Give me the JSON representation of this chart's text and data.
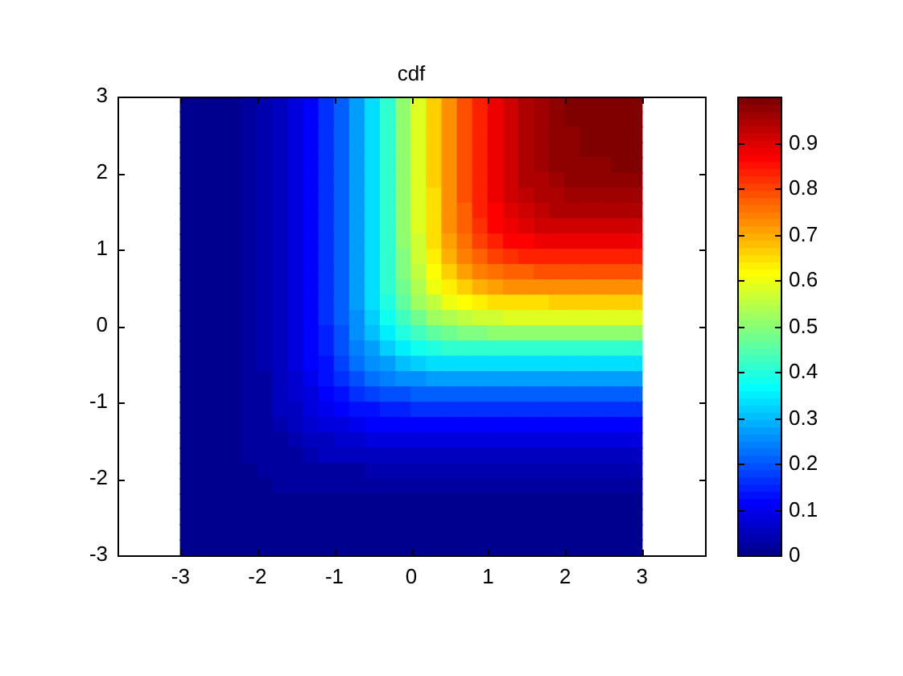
{
  "chart_data": {
    "type": "scatter",
    "title": "cdf",
    "marker": "square",
    "xlim": [
      -3.82,
      3.82
    ],
    "xticks": [
      -3,
      -2,
      -1,
      0,
      1,
      2,
      3
    ],
    "ylim": [
      -3,
      3
    ],
    "yticks": [
      -3,
      -2,
      -1,
      0,
      1,
      2,
      3
    ],
    "clim": [
      0,
      1
    ],
    "cticks": [
      0,
      0.1,
      0.2,
      0.3,
      0.4,
      0.5,
      0.6,
      0.7,
      0.8,
      0.9
    ],
    "x": [
      -2.9,
      -2.7,
      -2.5,
      -2.3,
      -2.1,
      -1.9,
      -1.7,
      -1.5,
      -1.3,
      -1.1,
      -0.9,
      -0.7,
      -0.5,
      -0.3,
      -0.1,
      0.1,
      0.3,
      0.5,
      0.7,
      0.9,
      1.1,
      1.3,
      1.5,
      1.7,
      1.9,
      2.1,
      2.3,
      2.5,
      2.7,
      2.9,
      -2.9,
      -2.7,
      -2.5,
      -2.3,
      -2.1,
      -1.9,
      -1.7,
      -1.5,
      -1.3,
      -1.1,
      -0.9,
      -0.7,
      -0.5,
      -0.3,
      -0.1,
      0.1,
      0.3,
      0.5,
      0.7,
      0.9,
      1.1,
      1.3,
      1.5,
      1.7,
      1.9,
      2.1,
      2.3,
      2.5,
      2.7,
      2.9,
      -2.9,
      -2.7,
      -2.5,
      -2.3,
      -2.1,
      -1.9,
      -1.7,
      -1.5,
      -1.3,
      -1.1,
      -0.9,
      -0.7,
      -0.5,
      -0.3,
      -0.1,
      0.1,
      0.3,
      0.5,
      0.7,
      0.9,
      1.1,
      1.3,
      1.5,
      1.7,
      1.9,
      2.1,
      2.3,
      2.5,
      2.7,
      2.9,
      -2.9,
      -2.7,
      -2.5,
      -2.3,
      -2.1,
      -1.9,
      -1.7,
      -1.5,
      -1.3,
      -1.1,
      -0.9,
      -0.7,
      -0.5,
      -0.3,
      -0.1,
      0.1,
      0.3,
      0.5,
      0.7,
      0.9,
      1.1,
      1.3,
      1.5,
      1.7,
      1.9,
      2.1,
      2.3,
      2.5,
      2.7,
      2.9,
      -2.9,
      -2.7,
      -2.5,
      -2.3,
      -2.1,
      -1.9,
      -1.7,
      -1.5,
      -1.3,
      -1.1,
      -0.9,
      -0.7,
      -0.5,
      -0.3,
      -0.1,
      0.1,
      0.3,
      0.5,
      0.7,
      0.9,
      1.1,
      1.3,
      1.5,
      1.7,
      1.9,
      2.1,
      2.3,
      2.5,
      2.7,
      2.9,
      -2.9,
      -2.7,
      -2.5,
      -2.3,
      -2.1,
      -1.9,
      -1.7,
      -1.5,
      -1.3,
      -1.1,
      -0.9,
      -0.7,
      -0.5,
      -0.3,
      -0.1,
      0.1,
      0.3,
      0.5,
      0.7,
      0.9,
      1.1,
      1.3,
      1.5,
      1.7,
      1.9,
      2.1,
      2.3,
      2.5,
      2.7,
      2.9,
      -2.9,
      -2.7,
      -2.5,
      -2.3,
      -2.1,
      -1.9,
      -1.7,
      -1.5,
      -1.3,
      -1.1,
      -0.9,
      -0.7,
      -0.5,
      -0.3,
      -0.1,
      0.1,
      0.3,
      0.5,
      0.7,
      0.9,
      1.1,
      1.3,
      1.5,
      1.7,
      1.9,
      2.1,
      2.3,
      2.5,
      2.7,
      2.9,
      -2.9,
      -2.7,
      -2.5,
      -2.3,
      -2.1,
      -1.9,
      -1.7,
      -1.5,
      -1.3,
      -1.1,
      -0.9,
      -0.7,
      -0.5,
      -0.3,
      -0.1,
      0.1,
      0.3,
      0.5,
      0.7,
      0.9,
      1.1,
      1.3,
      1.5,
      1.7,
      1.9,
      2.1,
      2.3,
      2.5,
      2.7,
      2.9,
      -2.9,
      -2.7,
      -2.5,
      -2.3,
      -2.1,
      -1.9,
      -1.7,
      -1.5,
      -1.3,
      -1.1,
      -0.9,
      -0.7,
      -0.5,
      -0.3,
      -0.1,
      0.1,
      0.3,
      0.5,
      0.7,
      0.9,
      1.1,
      1.3,
      1.5,
      1.7,
      1.9,
      2.1,
      2.3,
      2.5,
      2.7,
      2.9,
      -2.9,
      -2.7,
      -2.5,
      -2.3,
      -2.1,
      -1.9,
      -1.7,
      -1.5,
      -1.3,
      -1.1,
      -0.9,
      -0.7,
      -0.5,
      -0.3,
      -0.1,
      0.1,
      0.3,
      0.5,
      0.7,
      0.9,
      1.1,
      1.3,
      1.5,
      1.7,
      1.9,
      2.1,
      2.3,
      2.5,
      2.7,
      2.9,
      -2.9,
      -2.7,
      -2.5,
      -2.3,
      -2.1,
      -1.9,
      -1.7,
      -1.5,
      -1.3,
      -1.1,
      -0.9,
      -0.7,
      -0.5,
      -0.3,
      -0.1,
      0.1,
      0.3,
      0.5,
      0.7,
      0.9,
      1.1,
      1.3,
      1.5,
      1.7,
      1.9,
      2.1,
      2.3,
      2.5,
      2.7,
      2.9,
      -2.9,
      -2.7,
      -2.5,
      -2.3,
      -2.1,
      -1.9,
      -1.7,
      -1.5,
      -1.3,
      -1.1,
      -0.9,
      -0.7,
      -0.5,
      -0.3,
      -0.1,
      0.1,
      0.3,
      0.5,
      0.7,
      0.9,
      1.1,
      1.3,
      1.5,
      1.7,
      1.9,
      2.1,
      2.3,
      2.5,
      2.7,
      2.9,
      -2.9,
      -2.7,
      -2.5,
      -2.3,
      -2.1,
      -1.9,
      -1.7,
      -1.5,
      -1.3,
      -1.1,
      -0.9,
      -0.7,
      -0.5,
      -0.3,
      -0.1,
      0.1,
      0.3,
      0.5,
      0.7,
      0.9,
      1.1,
      1.3,
      1.5,
      1.7,
      1.9,
      2.1,
      2.3,
      2.5,
      2.7,
      2.9,
      -2.9,
      -2.7,
      -2.5,
      -2.3,
      -2.1,
      -1.9,
      -1.7,
      -1.5,
      -1.3,
      -1.1,
      -0.9,
      -0.7,
      -0.5,
      -0.3,
      -0.1,
      0.1,
      0.3,
      0.5,
      0.7,
      0.9,
      1.1,
      1.3,
      1.5,
      1.7,
      1.9,
      2.1,
      2.3,
      2.5,
      2.7,
      2.9,
      -2.9,
      -2.7,
      -2.5,
      -2.3,
      -2.1,
      -1.9,
      -1.7,
      -1.5,
      -1.3,
      -1.1,
      -0.9,
      -0.7,
      -0.5,
      -0.3,
      -0.1,
      0.1,
      0.3,
      0.5,
      0.7,
      0.9,
      1.1,
      1.3,
      1.5,
      1.7,
      1.9,
      2.1,
      2.3,
      2.5,
      2.7,
      2.9,
      -2.9,
      -2.7,
      -2.5,
      -2.3,
      -2.1,
      -1.9,
      -1.7,
      -1.5,
      -1.3,
      -1.1,
      -0.9,
      -0.7,
      -0.5,
      -0.3,
      -0.1,
      0.1,
      0.3,
      0.5,
      0.7,
      0.9,
      1.1,
      1.3,
      1.5,
      1.7,
      1.9,
      2.1,
      2.3,
      2.5,
      2.7,
      2.9,
      -2.9,
      -2.7,
      -2.5,
      -2.3,
      -2.1,
      -1.9,
      -1.7,
      -1.5,
      -1.3,
      -1.1,
      -0.9,
      -0.7,
      -0.5,
      -0.3,
      -0.1,
      0.1,
      0.3,
      0.5,
      0.7,
      0.9,
      1.1,
      1.3,
      1.5,
      1.7,
      1.9,
      2.1,
      2.3,
      2.5,
      2.7,
      2.9,
      -2.9,
      -2.7,
      -2.5,
      -2.3,
      -2.1,
      -1.9,
      -1.7,
      -1.5,
      -1.3,
      -1.1,
      -0.9,
      -0.7,
      -0.5,
      -0.3,
      -0.1,
      0.1,
      0.3,
      0.5,
      0.7,
      0.9,
      1.1,
      1.3,
      1.5,
      1.7,
      1.9,
      2.1,
      2.3,
      2.5,
      2.7,
      2.9,
      -2.9,
      -2.7,
      -2.5,
      -2.3,
      -2.1,
      -1.9,
      -1.7,
      -1.5,
      -1.3,
      -1.1,
      -0.9,
      -0.7,
      -0.5,
      -0.3,
      -0.1,
      0.1,
      0.3,
      0.5,
      0.7,
      0.9,
      1.1,
      1.3,
      1.5,
      1.7,
      1.9,
      2.1,
      2.3,
      2.5,
      2.7,
      2.9,
      -2.9,
      -2.7,
      -2.5,
      -2.3,
      -2.1,
      -1.9,
      -1.7,
      -1.5,
      -1.3,
      -1.1,
      -0.9,
      -0.7,
      -0.5,
      -0.3,
      -0.1,
      0.1,
      0.3,
      0.5,
      0.7,
      0.9,
      1.1,
      1.3,
      1.5,
      1.7,
      1.9,
      2.1,
      2.3,
      2.5,
      2.7,
      2.9,
      -2.9,
      -2.7,
      -2.5,
      -2.3,
      -2.1,
      -1.9,
      -1.7,
      -1.5,
      -1.3,
      -1.1,
      -0.9,
      -0.7,
      -0.5,
      -0.3,
      -0.1,
      0.1,
      0.3,
      0.5,
      0.7,
      0.9,
      1.1,
      1.3,
      1.5,
      1.7,
      1.9,
      2.1,
      2.3,
      2.5,
      2.7,
      2.9,
      -2.9,
      -2.7,
      -2.5,
      -2.3,
      -2.1,
      -1.9,
      -1.7,
      -1.5,
      -1.3,
      -1.1,
      -0.9,
      -0.7,
      -0.5,
      -0.3,
      -0.1,
      0.1,
      0.3,
      0.5,
      0.7,
      0.9,
      1.1,
      1.3,
      1.5,
      1.7,
      1.9,
      2.1,
      2.3,
      2.5,
      2.7,
      2.9,
      -2.9,
      -2.7,
      -2.5,
      -2.3,
      -2.1,
      -1.9,
      -1.7,
      -1.5,
      -1.3,
      -1.1,
      -0.9,
      -0.7,
      -0.5,
      -0.3,
      -0.1,
      0.1,
      0.3,
      0.5,
      0.7,
      0.9,
      1.1,
      1.3,
      1.5,
      1.7,
      1.9,
      2.1,
      2.3,
      2.5,
      2.7,
      2.9,
      -2.9,
      -2.7,
      -2.5,
      -2.3,
      -2.1,
      -1.9,
      -1.7,
      -1.5,
      -1.3,
      -1.1,
      -0.9,
      -0.7,
      -0.5,
      -0.3,
      -0.1,
      0.1,
      0.3,
      0.5,
      0.7,
      0.9,
      1.1,
      1.3,
      1.5,
      1.7,
      1.9,
      2.1,
      2.3,
      2.5,
      2.7,
      2.9,
      -2.9,
      -2.7,
      -2.5,
      -2.3,
      -2.1,
      -1.9,
      -1.7,
      -1.5,
      -1.3,
      -1.1,
      -0.9,
      -0.7,
      -0.5,
      -0.3,
      -0.1,
      0.1,
      0.3,
      0.5,
      0.7,
      0.9,
      1.1,
      1.3,
      1.5,
      1.7,
      1.9,
      2.1,
      2.3,
      2.5,
      2.7,
      2.9,
      -2.9,
      -2.7,
      -2.5,
      -2.3,
      -2.1,
      -1.9,
      -1.7,
      -1.5,
      -1.3,
      -1.1,
      -0.9,
      -0.7,
      -0.5,
      -0.3,
      -0.1,
      0.1,
      0.3,
      0.5,
      0.7,
      0.9,
      1.1,
      1.3,
      1.5,
      1.7,
      1.9,
      2.1,
      2.3,
      2.5,
      2.7,
      2.9,
      -2.9,
      -2.7,
      -2.5,
      -2.3,
      -2.1,
      -1.9,
      -1.7,
      -1.5,
      -1.3,
      -1.1,
      -0.9,
      -0.7,
      -0.5,
      -0.3,
      -0.1,
      0.1,
      0.3,
      0.5,
      0.7,
      0.9,
      1.1,
      1.3,
      1.5,
      1.7,
      1.9,
      2.1,
      2.3,
      2.5,
      2.7,
      2.9,
      -2.9,
      -2.7,
      -2.5,
      -2.3,
      -2.1,
      -1.9,
      -1.7,
      -1.5,
      -1.3,
      -1.1,
      -0.9,
      -0.7,
      -0.5,
      -0.3,
      -0.1,
      0.1,
      0.3,
      0.5,
      0.7,
      0.9,
      1.1,
      1.3,
      1.5,
      1.7,
      1.9,
      2.1,
      2.3,
      2.5,
      2.7,
      2.9,
      -2.9,
      -2.7,
      -2.5,
      -2.3,
      -2.1,
      -1.9,
      -1.7,
      -1.5,
      -1.3,
      -1.1,
      -0.9,
      -0.7,
      -0.5,
      -0.3,
      -0.1,
      0.1,
      0.3,
      0.5,
      0.7,
      0.9,
      1.1,
      1.3,
      1.5,
      1.7,
      1.9,
      2.1,
      2.3,
      2.5,
      2.7,
      2.9,
      -2.9,
      -2.7,
      -2.5,
      -2.3,
      -2.1,
      -1.9,
      -1.7,
      -1.5,
      -1.3,
      -1.1,
      -0.9,
      -0.7,
      -0.5,
      -0.3,
      -0.1,
      0.1,
      0.3,
      0.5,
      0.7,
      0.9,
      1.1,
      1.3,
      1.5,
      1.7,
      1.9,
      2.1,
      2.3,
      2.5,
      2.7,
      2.9
    ],
    "values": [
      2.9,
      2.9,
      2.9,
      2.9,
      2.9,
      2.9,
      2.9,
      2.9,
      2.9,
      2.9,
      2.9,
      2.9,
      2.9,
      2.9,
      2.9,
      2.9,
      2.9,
      2.9,
      2.9,
      2.9,
      2.9,
      2.9,
      2.9,
      2.9,
      2.9,
      2.9,
      2.9,
      2.9,
      2.9,
      2.9,
      2.7,
      2.7,
      2.7,
      2.7,
      2.7,
      2.7,
      2.7,
      2.7,
      2.7,
      2.7,
      2.7,
      2.7,
      2.7,
      2.7,
      2.7,
      2.7,
      2.7,
      2.7,
      2.7,
      2.7,
      2.7,
      2.7,
      2.7,
      2.7,
      2.7,
      2.7,
      2.7,
      2.7,
      2.7,
      2.7,
      2.5,
      2.5,
      2.5,
      2.5,
      2.5,
      2.5,
      2.5,
      2.5,
      2.5,
      2.5,
      2.5,
      2.5,
      2.5,
      2.5,
      2.5,
      2.5,
      2.5,
      2.5,
      2.5,
      2.5,
      2.5,
      2.5,
      2.5,
      2.5,
      2.5,
      2.5,
      2.5,
      2.5,
      2.5,
      2.5,
      2.3,
      2.3,
      2.3,
      2.3,
      2.3,
      2.3,
      2.3,
      2.3,
      2.3,
      2.3,
      2.3,
      2.3,
      2.3,
      2.3,
      2.3,
      2.3,
      2.3,
      2.3,
      2.3,
      2.3,
      2.3,
      2.3,
      2.3,
      2.3,
      2.3,
      2.3,
      2.3,
      2.3,
      2.3,
      2.3,
      2.1,
      2.1,
      2.1,
      2.1,
      2.1,
      2.1,
      2.1,
      2.1,
      2.1,
      2.1,
      2.1,
      2.1,
      2.1,
      2.1,
      2.1,
      2.1,
      2.1,
      2.1,
      2.1,
      2.1,
      2.1,
      2.1,
      2.1,
      2.1,
      2.1,
      2.1,
      2.1,
      2.1,
      2.1,
      2.1,
      1.9,
      1.9,
      1.9,
      1.9,
      1.9,
      1.9,
      1.9,
      1.9,
      1.9,
      1.9,
      1.9,
      1.9,
      1.9,
      1.9,
      1.9,
      1.9,
      1.9,
      1.9,
      1.9,
      1.9,
      1.9,
      1.9,
      1.9,
      1.9,
      1.9,
      1.9,
      1.9,
      1.9,
      1.9,
      1.9,
      1.7,
      1.7,
      1.7,
      1.7,
      1.7,
      1.7,
      1.7,
      1.7,
      1.7,
      1.7,
      1.7,
      1.7,
      1.7,
      1.7,
      1.7,
      1.7,
      1.7,
      1.7,
      1.7,
      1.7,
      1.7,
      1.7,
      1.7,
      1.7,
      1.7,
      1.7,
      1.7,
      1.7,
      1.7,
      1.7,
      1.5,
      1.5,
      1.5,
      1.5,
      1.5,
      1.5,
      1.5,
      1.5,
      1.5,
      1.5,
      1.5,
      1.5,
      1.5,
      1.5,
      1.5,
      1.5,
      1.5,
      1.5,
      1.5,
      1.5,
      1.5,
      1.5,
      1.5,
      1.5,
      1.5,
      1.5,
      1.5,
      1.5,
      1.5,
      1.5,
      1.3,
      1.3,
      1.3,
      1.3,
      1.3,
      1.3,
      1.3,
      1.3,
      1.3,
      1.3,
      1.3,
      1.3,
      1.3,
      1.3,
      1.3,
      1.3,
      1.3,
      1.3,
      1.3,
      1.3,
      1.3,
      1.3,
      1.3,
      1.3,
      1.3,
      1.3,
      1.3,
      1.3,
      1.3,
      1.3,
      1.1,
      1.1,
      1.1,
      1.1,
      1.1,
      1.1,
      1.1,
      1.1,
      1.1,
      1.1,
      1.1,
      1.1,
      1.1,
      1.1,
      1.1,
      1.1,
      1.1,
      1.1,
      1.1,
      1.1,
      1.1,
      1.1,
      1.1,
      1.1,
      1.1,
      1.1,
      1.1,
      1.1,
      1.1,
      1.1,
      0.9,
      0.9,
      0.9,
      0.9,
      0.9,
      0.9,
      0.9,
      0.9,
      0.9,
      0.9,
      0.9,
      0.9,
      0.9,
      0.9,
      0.9,
      0.9,
      0.9,
      0.9,
      0.9,
      0.9,
      0.9,
      0.9,
      0.9,
      0.9,
      0.9,
      0.9,
      0.9,
      0.9,
      0.9,
      0.9,
      0.7,
      0.7,
      0.7,
      0.7,
      0.7,
      0.7,
      0.7,
      0.7,
      0.7,
      0.7,
      0.7,
      0.7,
      0.7,
      0.7,
      0.7,
      0.7,
      0.7,
      0.7,
      0.7,
      0.7,
      0.7,
      0.7,
      0.7,
      0.7,
      0.7,
      0.7,
      0.7,
      0.7,
      0.7,
      0.7,
      0.5,
      0.5,
      0.5,
      0.5,
      0.5,
      0.5,
      0.5,
      0.5,
      0.5,
      0.5,
      0.5,
      0.5,
      0.5,
      0.5,
      0.5,
      0.5,
      0.5,
      0.5,
      0.5,
      0.5,
      0.5,
      0.5,
      0.5,
      0.5,
      0.5,
      0.5,
      0.5,
      0.5,
      0.5,
      0.5,
      0.3,
      0.3,
      0.3,
      0.3,
      0.3,
      0.3,
      0.3,
      0.3,
      0.3,
      0.3,
      0.3,
      0.3,
      0.3,
      0.3,
      0.3,
      0.3,
      0.3,
      0.3,
      0.3,
      0.3,
      0.3,
      0.3,
      0.3,
      0.3,
      0.3,
      0.3,
      0.3,
      0.3,
      0.3,
      0.3,
      0.1,
      0.1,
      0.1,
      0.1,
      0.1,
      0.1,
      0.1,
      0.1,
      0.1,
      0.1,
      0.1,
      0.1,
      0.1,
      0.1,
      0.1,
      0.1,
      0.1,
      0.1,
      0.1,
      0.1,
      0.1,
      0.1,
      0.1,
      0.1,
      0.1,
      0.1,
      0.1,
      0.1,
      0.1,
      0.1,
      -0.1,
      -0.1,
      -0.1,
      -0.1,
      -0.1,
      -0.1,
      -0.1,
      -0.1,
      -0.1,
      -0.1,
      -0.1,
      -0.1,
      -0.1,
      -0.1,
      -0.1,
      -0.1,
      -0.1,
      -0.1,
      -0.1,
      -0.1,
      -0.1,
      -0.1,
      -0.1,
      -0.1,
      -0.1,
      -0.1,
      -0.1,
      -0.1,
      -0.1,
      -0.1,
      -0.3,
      -0.3,
      -0.3,
      -0.3,
      -0.3,
      -0.3,
      -0.3,
      -0.3,
      -0.3,
      -0.3,
      -0.3,
      -0.3,
      -0.3,
      -0.3,
      -0.3,
      -0.3,
      -0.3,
      -0.3,
      -0.3,
      -0.3,
      -0.3,
      -0.3,
      -0.3,
      -0.3,
      -0.3,
      -0.3,
      -0.3,
      -0.3,
      -0.3,
      -0.3,
      -0.5,
      -0.5,
      -0.5,
      -0.5,
      -0.5,
      -0.5,
      -0.5,
      -0.5,
      -0.5,
      -0.5,
      -0.5,
      -0.5,
      -0.5,
      -0.5,
      -0.5,
      -0.5,
      -0.5,
      -0.5,
      -0.5,
      -0.5,
      -0.5,
      -0.5,
      -0.5,
      -0.5,
      -0.5,
      -0.5,
      -0.5,
      -0.5,
      -0.5,
      -0.5,
      -0.7,
      -0.7,
      -0.7,
      -0.7,
      -0.7,
      -0.7,
      -0.7,
      -0.7,
      -0.7,
      -0.7,
      -0.7,
      -0.7,
      -0.7,
      -0.7,
      -0.7,
      -0.7,
      -0.7,
      -0.7,
      -0.7,
      -0.7,
      -0.7,
      -0.7,
      -0.7,
      -0.7,
      -0.7,
      -0.7,
      -0.7,
      -0.7,
      -0.7,
      -0.7,
      -0.9,
      -0.9,
      -0.9,
      -0.9,
      -0.9,
      -0.9,
      -0.9,
      -0.9,
      -0.9,
      -0.9,
      -0.9,
      -0.9,
      -0.9,
      -0.9,
      -0.9,
      -0.9,
      -0.9,
      -0.9,
      -0.9,
      -0.9,
      -0.9,
      -0.9,
      -0.9,
      -0.9,
      -0.9,
      -0.9,
      -0.9,
      -0.9,
      -0.9,
      -0.9,
      -1.1,
      -1.1,
      -1.1,
      -1.1,
      -1.1,
      -1.1,
      -1.1,
      -1.1,
      -1.1,
      -1.1,
      -1.1,
      -1.1,
      -1.1,
      -1.1,
      -1.1,
      -1.1,
      -1.1,
      -1.1,
      -1.1,
      -1.1,
      -1.1,
      -1.1,
      -1.1,
      -1.1,
      -1.1,
      -1.1,
      -1.1,
      -1.1,
      -1.1,
      -1.1,
      -1.3,
      -1.3,
      -1.3,
      -1.3,
      -1.3,
      -1.3,
      -1.3,
      -1.3,
      -1.3,
      -1.3,
      -1.3,
      -1.3,
      -1.3,
      -1.3,
      -1.3,
      -1.3,
      -1.3,
      -1.3,
      -1.3,
      -1.3,
      -1.3,
      -1.3,
      -1.3,
      -1.3,
      -1.3,
      -1.3,
      -1.3,
      -1.3,
      -1.3,
      -1.3,
      -1.5,
      -1.5,
      -1.5,
      -1.5,
      -1.5,
      -1.5,
      -1.5,
      -1.5,
      -1.5,
      -1.5,
      -1.5,
      -1.5,
      -1.5,
      -1.5,
      -1.5,
      -1.5,
      -1.5,
      -1.5,
      -1.5,
      -1.5,
      -1.5,
      -1.5,
      -1.5,
      -1.5,
      -1.5,
      -1.5,
      -1.5,
      -1.5,
      -1.5,
      -1.5,
      -1.7,
      -1.7,
      -1.7,
      -1.7,
      -1.7,
      -1.7,
      -1.7,
      -1.7,
      -1.7,
      -1.7,
      -1.7,
      -1.7,
      -1.7,
      -1.7,
      -1.7,
      -1.7,
      -1.7,
      -1.7,
      -1.7,
      -1.7,
      -1.7,
      -1.7,
      -1.7,
      -1.7,
      -1.7,
      -1.7,
      -1.7,
      -1.7,
      -1.7,
      -1.7,
      -1.9,
      -1.9,
      -1.9,
      -1.9,
      -1.9,
      -1.9,
      -1.9,
      -1.9,
      -1.9,
      -1.9,
      -1.9,
      -1.9,
      -1.9,
      -1.9,
      -1.9,
      -1.9,
      -1.9,
      -1.9,
      -1.9,
      -1.9,
      -1.9,
      -1.9,
      -1.9,
      -1.9,
      -1.9,
      -1.9,
      -1.9,
      -1.9,
      -1.9,
      -1.9,
      -2.1,
      -2.1,
      -2.1,
      -2.1,
      -2.1,
      -2.1,
      -2.1,
      -2.1,
      -2.1,
      -2.1,
      -2.1,
      -2.1,
      -2.1,
      -2.1,
      -2.1,
      -2.1,
      -2.1,
      -2.1,
      -2.1,
      -2.1,
      -2.1,
      -2.1,
      -2.1,
      -2.1,
      -2.1,
      -2.1,
      -2.1,
      -2.1,
      -2.1,
      -2.1,
      -2.3,
      -2.3,
      -2.3,
      -2.3,
      -2.3,
      -2.3,
      -2.3,
      -2.3,
      -2.3,
      -2.3,
      -2.3,
      -2.3,
      -2.3,
      -2.3,
      -2.3,
      -2.3,
      -2.3,
      -2.3,
      -2.3,
      -2.3,
      -2.3,
      -2.3,
      -2.3,
      -2.3,
      -2.3,
      -2.3,
      -2.3,
      -2.3,
      -2.3,
      -2.3,
      -2.5,
      -2.5,
      -2.5,
      -2.5,
      -2.5,
      -2.5,
      -2.5,
      -2.5,
      -2.5,
      -2.5,
      -2.5,
      -2.5,
      -2.5,
      -2.5,
      -2.5,
      -2.5,
      -2.5,
      -2.5,
      -2.5,
      -2.5,
      -2.5,
      -2.5,
      -2.5,
      -2.5,
      -2.5,
      -2.5,
      -2.5,
      -2.5,
      -2.5,
      -2.5,
      -2.7,
      -2.7,
      -2.7,
      -2.7,
      -2.7,
      -2.7,
      -2.7,
      -2.7,
      -2.7,
      -2.7,
      -2.7,
      -2.7,
      -2.7,
      -2.7,
      -2.7,
      -2.7,
      -2.7,
      -2.7,
      -2.7,
      -2.7,
      -2.7,
      -2.7,
      -2.7,
      -2.7,
      -2.7,
      -2.7,
      -2.7,
      -2.7,
      -2.7,
      -2.7,
      -2.9,
      -2.9,
      -2.9,
      -2.9,
      -2.9,
      -2.9,
      -2.9,
      -2.9,
      -2.9,
      -2.9,
      -2.9,
      -2.9,
      -2.9,
      -2.9,
      -2.9,
      -2.9,
      -2.9,
      -2.9,
      -2.9,
      -2.9,
      -2.9,
      -2.9,
      -2.9,
      -2.9,
      -2.9,
      -2.9,
      -2.9,
      -2.9,
      -2.9,
      -2.9
    ],
    "cvalues": [
      0,
      0,
      0.01,
      0.01,
      0.02,
      0.04,
      0.05,
      0.08,
      0.12,
      0.16,
      0.21,
      0.27,
      0.34,
      0.42,
      0.5,
      0.58,
      0.66,
      0.73,
      0.79,
      0.84,
      0.88,
      0.92,
      0.95,
      0.96,
      0.98,
      0.99,
      0.99,
      0.99,
      1,
      1,
      0,
      0,
      0.01,
      0.01,
      0.02,
      0.04,
      0.05,
      0.08,
      0.12,
      0.16,
      0.21,
      0.27,
      0.34,
      0.42,
      0.5,
      0.58,
      0.66,
      0.73,
      0.79,
      0.84,
      0.88,
      0.92,
      0.94,
      0.96,
      0.98,
      0.99,
      0.99,
      0.99,
      1,
      1,
      0,
      0,
      0.01,
      0.01,
      0.02,
      0.04,
      0.05,
      0.08,
      0.12,
      0.16,
      0.21,
      0.27,
      0.34,
      0.42,
      0.5,
      0.58,
      0.66,
      0.73,
      0.79,
      0.84,
      0.88,
      0.92,
      0.94,
      0.96,
      0.98,
      0.98,
      0.99,
      0.99,
      0.99,
      0.99,
      0,
      0,
      0.01,
      0.01,
      0.02,
      0.04,
      0.05,
      0.08,
      0.12,
      0.16,
      0.21,
      0.27,
      0.34,
      0.42,
      0.5,
      0.58,
      0.66,
      0.73,
      0.79,
      0.84,
      0.88,
      0.92,
      0.94,
      0.96,
      0.97,
      0.98,
      0.99,
      0.99,
      0.99,
      0.99,
      0,
      0,
      0.01,
      0.01,
      0.02,
      0.04,
      0.05,
      0.08,
      0.12,
      0.16,
      0.21,
      0.27,
      0.34,
      0.42,
      0.5,
      0.58,
      0.66,
      0.73,
      0.79,
      0.84,
      0.88,
      0.92,
      0.94,
      0.96,
      0.97,
      0.98,
      0.98,
      0.98,
      0.99,
      0.99,
      0,
      0,
      0.01,
      0.01,
      0.02,
      0.04,
      0.05,
      0.08,
      0.12,
      0.16,
      0.21,
      0.27,
      0.34,
      0.42,
      0.5,
      0.58,
      0.66,
      0.73,
      0.79,
      0.84,
      0.88,
      0.91,
      0.94,
      0.95,
      0.96,
      0.97,
      0.97,
      0.98,
      0.98,
      0.98,
      0,
      0,
      0.01,
      0.01,
      0.02,
      0.04,
      0.05,
      0.08,
      0.12,
      0.16,
      0.21,
      0.27,
      0.34,
      0.42,
      0.5,
      0.58,
      0.65,
      0.72,
      0.79,
      0.84,
      0.88,
      0.91,
      0.93,
      0.94,
      0.95,
      0.96,
      0.96,
      0.96,
      0.96,
      0.96,
      0,
      0,
      0.01,
      0.01,
      0.02,
      0.04,
      0.05,
      0.08,
      0.12,
      0.16,
      0.21,
      0.27,
      0.34,
      0.42,
      0.5,
      0.58,
      0.65,
      0.72,
      0.78,
      0.83,
      0.87,
      0.9,
      0.92,
      0.93,
      0.94,
      0.94,
      0.94,
      0.94,
      0.94,
      0.95,
      0,
      0,
      0.01,
      0.01,
      0.02,
      0.04,
      0.05,
      0.08,
      0.12,
      0.16,
      0.21,
      0.27,
      0.34,
      0.42,
      0.5,
      0.58,
      0.65,
      0.72,
      0.78,
      0.82,
      0.86,
      0.88,
      0.9,
      0.91,
      0.91,
      0.92,
      0.92,
      0.92,
      0.92,
      0.92,
      0,
      0,
      0.01,
      0.01,
      0.02,
      0.04,
      0.05,
      0.08,
      0.12,
      0.16,
      0.21,
      0.27,
      0.34,
      0.42,
      0.5,
      0.57,
      0.65,
      0.71,
      0.76,
      0.81,
      0.84,
      0.86,
      0.87,
      0.88,
      0.88,
      0.88,
      0.88,
      0.88,
      0.88,
      0.88,
      0,
      0,
      0.01,
      0.01,
      0.02,
      0.04,
      0.05,
      0.08,
      0.12,
      0.16,
      0.21,
      0.27,
      0.34,
      0.42,
      0.49,
      0.57,
      0.64,
      0.7,
      0.74,
      0.78,
      0.81,
      0.82,
      0.83,
      0.84,
      0.84,
      0.84,
      0.84,
      0.84,
      0.84,
      0.84,
      0,
      0,
      0.01,
      0.01,
      0.02,
      0.04,
      0.05,
      0.08,
      0.11,
      0.16,
      0.21,
      0.27,
      0.34,
      0.41,
      0.49,
      0.56,
      0.62,
      0.67,
      0.71,
      0.74,
      0.76,
      0.78,
      0.78,
      0.79,
      0.79,
      0.79,
      0.79,
      0.79,
      0.79,
      0.79,
      0,
      0,
      0.01,
      0.01,
      0.02,
      0.04,
      0.05,
      0.08,
      0.11,
      0.16,
      0.21,
      0.27,
      0.34,
      0.41,
      0.48,
      0.54,
      0.6,
      0.64,
      0.67,
      0.7,
      0.71,
      0.72,
      0.72,
      0.72,
      0.73,
      0.73,
      0.73,
      0.73,
      0.73,
      0.73,
      0,
      0,
      0.01,
      0.01,
      0.02,
      0.04,
      0.05,
      0.08,
      0.11,
      0.16,
      0.21,
      0.27,
      0.33,
      0.4,
      0.46,
      0.52,
      0.56,
      0.6,
      0.62,
      0.64,
      0.65,
      0.65,
      0.65,
      0.65,
      0.66,
      0.66,
      0.66,
      0.66,
      0.66,
      0.66,
      0,
      0,
      0.01,
      0.01,
      0.02,
      0.04,
      0.05,
      0.08,
      0.11,
      0.16,
      0.21,
      0.26,
      0.32,
      0.38,
      0.43,
      0.48,
      0.52,
      0.54,
      0.56,
      0.57,
      0.57,
      0.58,
      0.58,
      0.58,
      0.58,
      0.58,
      0.58,
      0.58,
      0.58,
      0.58,
      0,
      0,
      0.01,
      0.01,
      0.02,
      0.04,
      0.05,
      0.08,
      0.11,
      0.15,
      0.2,
      0.25,
      0.3,
      0.35,
      0.4,
      0.43,
      0.46,
      0.48,
      0.49,
      0.49,
      0.5,
      0.5,
      0.5,
      0.5,
      0.5,
      0.5,
      0.5,
      0.5,
      0.5,
      0.5,
      0,
      0,
      0.01,
      0.01,
      0.02,
      0.04,
      0.05,
      0.08,
      0.11,
      0.15,
      0.19,
      0.24,
      0.28,
      0.32,
      0.35,
      0.38,
      0.4,
      0.41,
      0.41,
      0.42,
      0.42,
      0.42,
      0.42,
      0.42,
      0.42,
      0.42,
      0.42,
      0.42,
      0.42,
      0.42,
      0,
      0,
      0.01,
      0.01,
      0.02,
      0.04,
      0.05,
      0.08,
      0.11,
      0.14,
      0.18,
      0.22,
      0.25,
      0.28,
      0.3,
      0.32,
      0.33,
      0.34,
      0.34,
      0.34,
      0.34,
      0.34,
      0.34,
      0.34,
      0.34,
      0.34,
      0.34,
      0.34,
      0.34,
      0.34,
      0,
      0,
      0.01,
      0.01,
      0.02,
      0.03,
      0.05,
      0.07,
      0.1,
      0.13,
      0.16,
      0.19,
      0.22,
      0.24,
      0.25,
      0.26,
      0.27,
      0.27,
      0.27,
      0.27,
      0.27,
      0.27,
      0.27,
      0.27,
      0.27,
      0.27,
      0.27,
      0.27,
      0.27,
      0.27,
      0,
      0,
      0.01,
      0.01,
      0.02,
      0.03,
      0.05,
      0.07,
      0.09,
      0.11,
      0.14,
      0.16,
      0.18,
      0.19,
      0.2,
      0.21,
      0.21,
      0.21,
      0.21,
      0.21,
      0.21,
      0.21,
      0.21,
      0.21,
      0.21,
      0.21,
      0.21,
      0.21,
      0.21,
      0.21,
      0,
      0,
      0.01,
      0.01,
      0.02,
      0.03,
      0.05,
      0.06,
      0.08,
      0.1,
      0.11,
      0.13,
      0.14,
      0.15,
      0.15,
      0.16,
      0.16,
      0.16,
      0.16,
      0.16,
      0.16,
      0.16,
      0.16,
      0.16,
      0.16,
      0.16,
      0.16,
      0.16,
      0.16,
      0.16,
      0,
      0,
      0.01,
      0.01,
      0.02,
      0.03,
      0.04,
      0.05,
      0.07,
      0.08,
      0.09,
      0.1,
      0.11,
      0.11,
      0.11,
      0.11,
      0.11,
      0.11,
      0.11,
      0.12,
      0.12,
      0.12,
      0.12,
      0.12,
      0.12,
      0.12,
      0.12,
      0.12,
      0.12,
      0.12,
      0,
      0,
      0.01,
      0.01,
      0.02,
      0.03,
      0.03,
      0.04,
      0.05,
      0.06,
      0.07,
      0.07,
      0.08,
      0.08,
      0.08,
      0.08,
      0.08,
      0.08,
      0.08,
      0.08,
      0.08,
      0.08,
      0.08,
      0.08,
      0.08,
      0.08,
      0.08,
      0.08,
      0.08,
      0.08,
      0,
      0,
      0.01,
      0.01,
      0.02,
      0.02,
      0.03,
      0.03,
      0.04,
      0.05,
      0.05,
      0.05,
      0.05,
      0.05,
      0.05,
      0.05,
      0.05,
      0.05,
      0.05,
      0.05,
      0.05,
      0.05,
      0.05,
      0.05,
      0.05,
      0.05,
      0.05,
      0.05,
      0.05,
      0.05,
      0,
      0,
      0.01,
      0.01,
      0.01,
      0.02,
      0.02,
      0.03,
      0.03,
      0.03,
      0.03,
      0.03,
      0.04,
      0.04,
      0.04,
      0.04,
      0.04,
      0.04,
      0.04,
      0.04,
      0.04,
      0.04,
      0.04,
      0.04,
      0.04,
      0.04,
      0.04,
      0.04,
      0.04,
      0.04,
      0,
      0,
      0,
      0.01,
      0.01,
      0.01,
      0.02,
      0.02,
      0.02,
      0.02,
      0.02,
      0.02,
      0.02,
      0.02,
      0.02,
      0.02,
      0.02,
      0.02,
      0.02,
      0.02,
      0.02,
      0.02,
      0.02,
      0.02,
      0.02,
      0.02,
      0.02,
      0.02,
      0.02,
      0.02,
      0,
      0,
      0,
      0.01,
      0.01,
      0.01,
      0.01,
      0.01,
      0.01,
      0.01,
      0.01,
      0.01,
      0.01,
      0.01,
      0.01,
      0.01,
      0.01,
      0.01,
      0.01,
      0.01,
      0.01,
      0.01,
      0.01,
      0.01,
      0.01,
      0.01,
      0.01,
      0.01,
      0.01,
      0.01,
      0,
      0,
      0,
      0,
      0,
      0.01,
      0.01,
      0.01,
      0.01,
      0.01,
      0.01,
      0.01,
      0.01,
      0.01,
      0.01,
      0.01,
      0.01,
      0.01,
      0.01,
      0.01,
      0.01,
      0.01,
      0.01,
      0.01,
      0.01,
      0.01,
      0.01,
      0.01,
      0.01,
      0.01,
      0,
      0,
      0,
      0,
      0,
      0,
      0,
      0,
      0,
      0,
      0,
      0,
      0,
      0,
      0,
      0,
      0,
      0,
      0,
      0,
      0,
      0,
      0,
      0,
      0,
      0,
      0,
      0,
      0,
      0,
      0,
      0,
      0,
      0,
      0,
      0,
      0,
      0,
      0,
      0,
      0,
      0,
      0,
      0,
      0,
      0,
      0,
      0,
      0,
      0,
      0,
      0,
      0,
      0,
      0,
      0,
      0,
      0,
      0,
      0
    ]
  }
}
